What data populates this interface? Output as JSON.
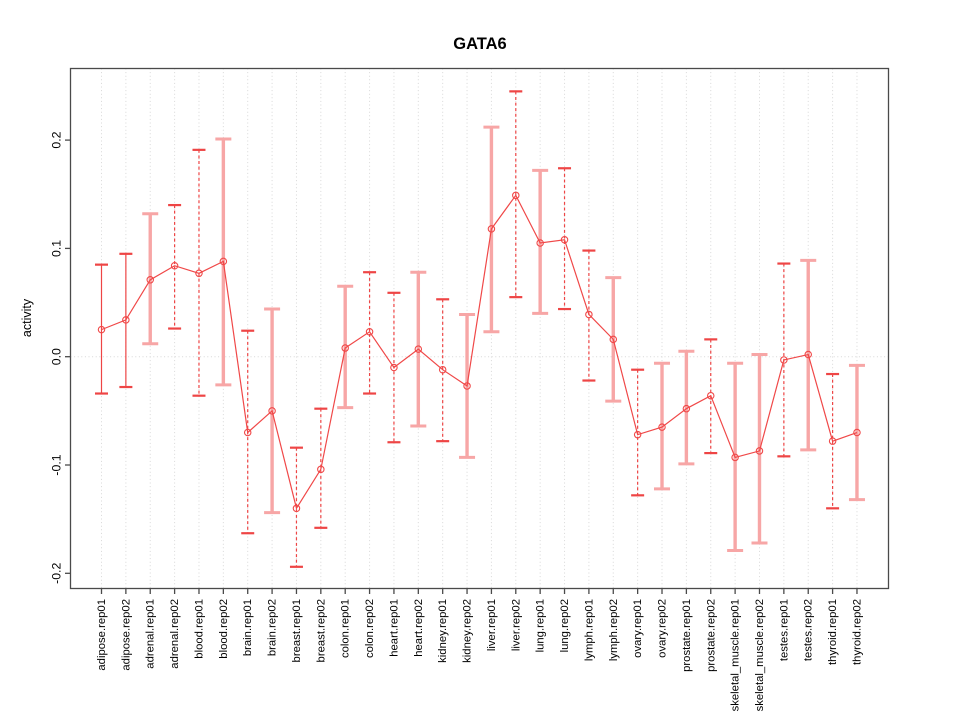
{
  "figure": {
    "background": "#ffffff"
  },
  "chart_data": {
    "type": "line",
    "title": "GATA6",
    "xlabel": "",
    "ylabel": "activity",
    "ylim": [
      -0.215,
      0.265
    ],
    "grid": "dotted vertical gridline per category; dotted horizontal line at y=0; no legend",
    "legend_position": "none",
    "point_marker": "open-circle",
    "error_bars": true,
    "colors": {
      "line": "#f04848",
      "error_bar_red": "#ee4545",
      "error_bar_pink": "#f7a6a6",
      "grid": "#d8d8d8",
      "box": "#4a4a4a",
      "text": "#000000"
    },
    "yticks": [
      {
        "label": "-0.2",
        "value": -0.2
      },
      {
        "label": "-0.1",
        "value": -0.1
      },
      {
        "label": "0.0",
        "value": 0.0
      },
      {
        "label": "0.1",
        "value": 0.1
      },
      {
        "label": "0.2",
        "value": 0.2
      }
    ],
    "categories": [
      "adipose.rep01",
      "adipose.rep02",
      "adrenal.rep01",
      "adrenal.rep02",
      "blood.rep01",
      "blood.rep02",
      "brain.rep01",
      "brain.rep02",
      "breast.rep01",
      "breast.rep02",
      "colon.rep01",
      "colon.rep02",
      "heart.rep01",
      "heart.rep02",
      "kidney.rep01",
      "kidney.rep02",
      "liver.rep01",
      "liver.rep02",
      "lung.rep01",
      "lung.rep02",
      "lymph.rep01",
      "lymph.rep02",
      "ovary.rep01",
      "ovary.rep02",
      "prostate.rep01",
      "prostate.rep02",
      "skeletal_muscle.rep01",
      "skeletal_muscle.rep02",
      "testes.rep01",
      "testes.rep02",
      "thyroid.rep01",
      "thyroid.rep02"
    ],
    "series": [
      {
        "name": "activity",
        "points": [
          {
            "label": "adipose.rep01",
            "value": 0.025,
            "lo": -0.034,
            "hi": 0.085,
            "bar_style": "red-solid"
          },
          {
            "label": "adipose.rep02",
            "value": 0.034,
            "lo": -0.028,
            "hi": 0.095,
            "bar_style": "red-solid"
          },
          {
            "label": "adrenal.rep01",
            "value": 0.071,
            "lo": 0.012,
            "hi": 0.132,
            "bar_style": "pink-solid"
          },
          {
            "label": "adrenal.rep02",
            "value": 0.084,
            "lo": 0.026,
            "hi": 0.14,
            "bar_style": "red-dashed"
          },
          {
            "label": "blood.rep01",
            "value": 0.077,
            "lo": -0.036,
            "hi": 0.191,
            "bar_style": "red-dashed"
          },
          {
            "label": "blood.rep02",
            "value": 0.088,
            "lo": -0.026,
            "hi": 0.201,
            "bar_style": "pink-solid"
          },
          {
            "label": "brain.rep01",
            "value": -0.07,
            "lo": -0.163,
            "hi": 0.024,
            "bar_style": "red-dashed"
          },
          {
            "label": "brain.rep02",
            "value": -0.05,
            "lo": -0.144,
            "hi": 0.044,
            "bar_style": "pink-solid"
          },
          {
            "label": "breast.rep01",
            "value": -0.14,
            "lo": -0.194,
            "hi": -0.084,
            "bar_style": "red-dashed"
          },
          {
            "label": "breast.rep02",
            "value": -0.104,
            "lo": -0.158,
            "hi": -0.048,
            "bar_style": "red-dashed"
          },
          {
            "label": "colon.rep01",
            "value": 0.008,
            "lo": -0.047,
            "hi": 0.065,
            "bar_style": "pink-solid"
          },
          {
            "label": "colon.rep02",
            "value": 0.023,
            "lo": -0.034,
            "hi": 0.078,
            "bar_style": "red-dashed"
          },
          {
            "label": "heart.rep01",
            "value": -0.01,
            "lo": -0.079,
            "hi": 0.059,
            "bar_style": "red-dashed"
          },
          {
            "label": "heart.rep02",
            "value": 0.007,
            "lo": -0.064,
            "hi": 0.078,
            "bar_style": "pink-solid"
          },
          {
            "label": "kidney.rep01",
            "value": -0.012,
            "lo": -0.078,
            "hi": 0.053,
            "bar_style": "red-dashed"
          },
          {
            "label": "kidney.rep02",
            "value": -0.027,
            "lo": -0.093,
            "hi": 0.039,
            "bar_style": "pink-solid"
          },
          {
            "label": "liver.rep01",
            "value": 0.118,
            "lo": 0.023,
            "hi": 0.212,
            "bar_style": "pink-solid"
          },
          {
            "label": "liver.rep02",
            "value": 0.149,
            "lo": 0.055,
            "hi": 0.245,
            "bar_style": "red-dashed"
          },
          {
            "label": "lung.rep01",
            "value": 0.105,
            "lo": 0.04,
            "hi": 0.172,
            "bar_style": "pink-solid"
          },
          {
            "label": "lung.rep02",
            "value": 0.108,
            "lo": 0.044,
            "hi": 0.174,
            "bar_style": "red-dashed"
          },
          {
            "label": "lymph.rep01",
            "value": 0.039,
            "lo": -0.022,
            "hi": 0.098,
            "bar_style": "red-dashed"
          },
          {
            "label": "lymph.rep02",
            "value": 0.016,
            "lo": -0.041,
            "hi": 0.073,
            "bar_style": "pink-solid"
          },
          {
            "label": "ovary.rep01",
            "value": -0.072,
            "lo": -0.128,
            "hi": -0.012,
            "bar_style": "red-dashed"
          },
          {
            "label": "ovary.rep02",
            "value": -0.065,
            "lo": -0.122,
            "hi": -0.006,
            "bar_style": "pink-solid"
          },
          {
            "label": "prostate.rep01",
            "value": -0.048,
            "lo": -0.099,
            "hi": 0.005,
            "bar_style": "pink-solid"
          },
          {
            "label": "prostate.rep02",
            "value": -0.036,
            "lo": -0.089,
            "hi": 0.016,
            "bar_style": "red-dashed"
          },
          {
            "label": "skeletal_muscle.rep01",
            "value": -0.093,
            "lo": -0.179,
            "hi": -0.006,
            "bar_style": "pink-solid"
          },
          {
            "label": "skeletal_muscle.rep02",
            "value": -0.087,
            "lo": -0.172,
            "hi": 0.002,
            "bar_style": "pink-solid"
          },
          {
            "label": "testes.rep01",
            "value": -0.003,
            "lo": -0.092,
            "hi": 0.086,
            "bar_style": "red-dashed"
          },
          {
            "label": "testes.rep02",
            "value": 0.002,
            "lo": -0.086,
            "hi": 0.089,
            "bar_style": "pink-solid"
          },
          {
            "label": "thyroid.rep01",
            "value": -0.078,
            "lo": -0.14,
            "hi": -0.016,
            "bar_style": "red-dashed"
          },
          {
            "label": "thyroid.rep02",
            "value": -0.07,
            "lo": -0.132,
            "hi": -0.008,
            "bar_style": "pink-solid"
          }
        ]
      }
    ]
  }
}
